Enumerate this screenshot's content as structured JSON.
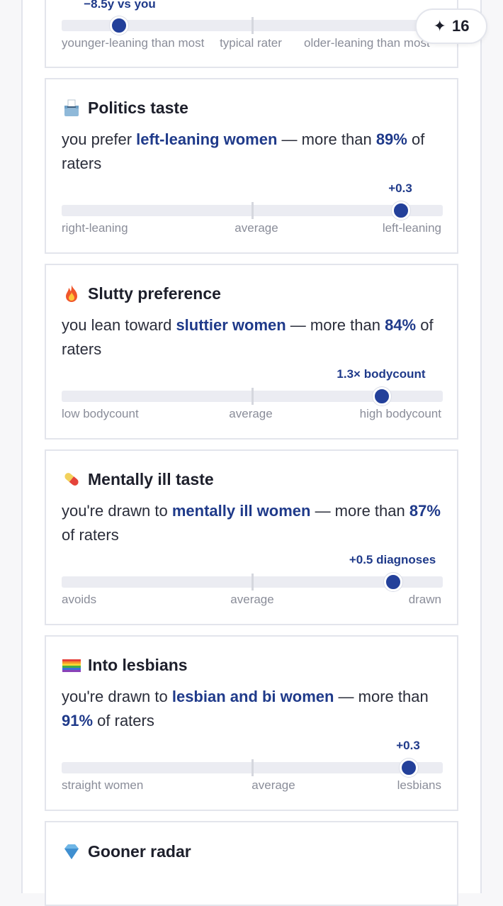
{
  "badge": {
    "icon": "sparkle-icon",
    "count": "16"
  },
  "age_card": {
    "value_label": "−8.5y vs you",
    "left": "younger-leaning than most",
    "middle": "typical rater",
    "right": "older-leaning than most",
    "position": 0.15
  },
  "politics": {
    "icon": "ballot-box-icon",
    "title": "Politics taste",
    "desc_pre": "you prefer ",
    "desc_hl": "left-leaning women",
    "desc_mid": " — more than ",
    "desc_pct": "89%",
    "desc_post": " of raters",
    "value_label": "+0.3",
    "left": "right-leaning",
    "middle": "average",
    "right": "left-leaning",
    "position": 0.89
  },
  "slutty": {
    "icon": "fire-icon",
    "title": "Slutty preference",
    "desc_pre": "you lean toward ",
    "desc_hl": "sluttier women",
    "desc_mid": " — more than ",
    "desc_pct": "84%",
    "desc_post": " of raters",
    "value_label": "1.3× bodycount",
    "left": "low bodycount",
    "middle": "average",
    "right": "high bodycount",
    "position": 0.84
  },
  "mental": {
    "icon": "pill-icon",
    "title": "Mentally ill taste",
    "desc_pre": "you're drawn to ",
    "desc_hl": "mentally ill women",
    "desc_mid": " — more than ",
    "desc_pct": "87%",
    "desc_post": " of raters",
    "value_label": "+0.5 diagnoses",
    "left": "avoids",
    "middle": "average",
    "right": "drawn",
    "position": 0.87
  },
  "lesbians": {
    "icon": "rainbow-flag-icon",
    "title": "Into lesbians",
    "desc_pre": "you're drawn to ",
    "desc_hl": "lesbian and bi women",
    "desc_mid": " — more than ",
    "desc_pct": "91%",
    "desc_post": " of raters",
    "value_label": "+0.3",
    "left": "straight women",
    "middle": "average",
    "right": "lesbians",
    "position": 0.91
  },
  "next_card": {
    "icon": "diamond-icon",
    "title": "Gooner radar"
  },
  "colors": {
    "accent": "#1f3a8a",
    "dot": "#23409a",
    "track": "#ebecf2",
    "muted": "#8a8d99"
  }
}
